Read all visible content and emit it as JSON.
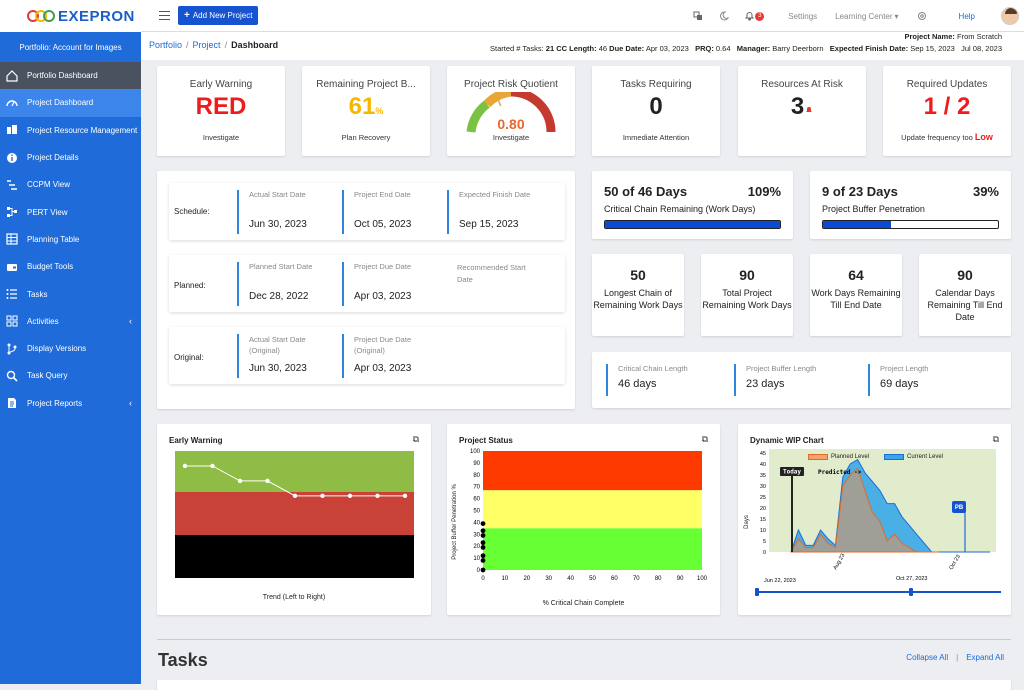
{
  "brand": {
    "name": "EXEPRON"
  },
  "sidebar": {
    "portfolio_title": "Portfolio: Account for Images",
    "items": [
      {
        "label": "Portfolio Dashboard",
        "icon": "home-icon"
      },
      {
        "label": "Project Dashboard",
        "icon": "dashboard-icon"
      },
      {
        "label": "Project Resource Management",
        "icon": "resource-icon"
      },
      {
        "label": "Project Details",
        "icon": "info-icon"
      },
      {
        "label": "CCPM View",
        "icon": "ccpm-icon"
      },
      {
        "label": "PERT View",
        "icon": "pert-icon"
      },
      {
        "label": "Planning Table",
        "icon": "table-icon"
      },
      {
        "label": "Budget Tools",
        "icon": "budget-icon"
      },
      {
        "label": "Tasks",
        "icon": "tasks-icon"
      },
      {
        "label": "Activities",
        "icon": "activities-icon",
        "chevron": "‹"
      },
      {
        "label": "Display Versions",
        "icon": "versions-icon"
      },
      {
        "label": "Task Query",
        "icon": "search-icon"
      },
      {
        "label": "Project Reports",
        "icon": "reports-icon",
        "chevron": "‹"
      }
    ]
  },
  "topbar": {
    "add_button": "Add New Project",
    "add_symbol": "+",
    "notif_count": "3",
    "settings": "Settings",
    "learning": "Learning Center",
    "learning_chev": "▾",
    "help": "Help"
  },
  "breadcrumb": {
    "portfolio": "Portfolio",
    "project": "Project",
    "current": "Dashboard",
    "sep": "/"
  },
  "project": {
    "name_label": "Project Name:",
    "name_value": "From Scratch",
    "started_label": "Started # Tasks:",
    "tasks": "21",
    "cc_label": "CC Length:",
    "cc": "46",
    "due_label": "Due Date:",
    "due": "Apr 03, 2023",
    "prq_label": "PRQ:",
    "prq": "0.64",
    "manager_label": "Manager:",
    "manager": "Barry Deerborn",
    "finish_label": "Expected Finish Date:",
    "finish": "Sep 15, 2023",
    "date": "Jul 08, 2023"
  },
  "kpis": [
    {
      "title": "Early Warning",
      "value": "RED",
      "sub": "Investigate",
      "color": "#ee1c1c"
    },
    {
      "title": "Remaining Project B...",
      "value": "61",
      "unit": "%",
      "sub": "Plan Recovery",
      "color": "#f5b800"
    },
    {
      "title": "Project Risk Quotient",
      "value": "0.80",
      "sub": "Investigate",
      "color": "#e8672e",
      "gauge": 0.8
    },
    {
      "title": "Tasks Requiring",
      "value": "0",
      "sub": "Immediate Attention",
      "color": "#111"
    },
    {
      "title": "Resources At Risk",
      "value": "3",
      "sub": "",
      "color": "#111"
    },
    {
      "title": "Required Updates",
      "value": "1 / 2",
      "sub": "Update frequency too",
      "sub2": "Low",
      "color": "#ee1c1c"
    }
  ],
  "dates": [
    {
      "label": "Schedule:",
      "cols": [
        {
          "h": "Actual Start Date",
          "v": "Jun 30, 2023"
        },
        {
          "h": "Project End Date",
          "v": "Oct 05, 2023"
        },
        {
          "h": "Expected Finish Date",
          "v": "Sep 15, 2023"
        }
      ]
    },
    {
      "label": "Planned:",
      "cols": [
        {
          "h": "Planned Start Date",
          "v": "Dec 28, 2022"
        },
        {
          "h": "Project Due Date",
          "v": "Apr 03, 2023"
        },
        {
          "h": "Recommended Start Date",
          "v": ""
        }
      ]
    },
    {
      "label": "Original:",
      "cols": [
        {
          "h": "Actual Start Date (Original)",
          "v": "Jun 30, 2023"
        },
        {
          "h": "Project Due Date (Original)",
          "v": "Apr 03, 2023"
        }
      ]
    }
  ],
  "chain": {
    "left": "50 of 46 Days",
    "right": "109%",
    "sub": "Critical Chain Remaining (Work Days)",
    "fill": 1.0
  },
  "buffer": {
    "left": "9 of 23 Days",
    "right": "39%",
    "sub": "Project Buffer Penetration",
    "fill": 0.39
  },
  "stats": [
    {
      "v": "50",
      "l": "Longest Chain of Remaining Work Days"
    },
    {
      "v": "90",
      "l": "Total Project Remaining Work Days"
    },
    {
      "v": "64",
      "l": "Work Days Remaining Till End Date"
    },
    {
      "v": "90",
      "l": "Calendar Days Remaining Till End Date"
    }
  ],
  "lengths": [
    {
      "h": "Critical Chain Length",
      "v": "46 days"
    },
    {
      "h": "Project Buffer Length",
      "v": "23 days"
    },
    {
      "h": "Project Length",
      "v": "69 days"
    }
  ],
  "charts": {
    "early_warning": {
      "title": "Early Warning",
      "xlabel": "Trend (Left to Right)"
    },
    "project_status": {
      "title": "Project Status",
      "xlabel": "% Critical Chain Complete",
      "ylabel": "Project Buffer Penetration %"
    },
    "wip": {
      "title": "Dynamic WIP Chart",
      "legend_planned": "Planned Level",
      "legend_current": "Current Level",
      "today": "Today",
      "predicted": "Predicted ->",
      "pb": "PB",
      "ylabel": "Days"
    }
  },
  "chart_data": [
    {
      "type": "line",
      "title": "Early Warning",
      "xlabel": "Trend (Left to Right)",
      "x": [
        1,
        2,
        3,
        4,
        5,
        6,
        7,
        8,
        9
      ],
      "values": [
        3,
        3,
        2.6,
        2.6,
        2.2,
        2.2,
        2.2,
        2.2,
        2.2
      ],
      "ylim": [
        0,
        3.4
      ]
    },
    {
      "type": "scatter",
      "title": "Project Status",
      "xlabel": "% Critical Chain Complete",
      "ylabel": "Project Buffer Penetration %",
      "xlim": [
        0,
        100
      ],
      "ylim": [
        0,
        100
      ],
      "xticks": [
        0,
        10,
        20,
        30,
        40,
        50,
        60,
        70,
        80,
        90,
        100
      ],
      "yticks": [
        0,
        10,
        20,
        30,
        40,
        50,
        60,
        70,
        80,
        90,
        100
      ],
      "points": [
        [
          0,
          0
        ],
        [
          0,
          8
        ],
        [
          0,
          12
        ],
        [
          0,
          19
        ],
        [
          0,
          23
        ],
        [
          0,
          29
        ],
        [
          0,
          33
        ],
        [
          0,
          39
        ]
      ]
    },
    {
      "type": "area",
      "title": "Dynamic WIP Chart",
      "ylabel": "Days",
      "ylim": [
        0,
        45
      ],
      "yticks": [
        0,
        5,
        10,
        15,
        20,
        25,
        30,
        35,
        40,
        45
      ],
      "xtick_labels": [
        "Jun 22, 2023",
        "Aug 23",
        "Oct 27, 2023",
        "Oct 23"
      ],
      "series": [
        {
          "name": "Planned Level",
          "values": [
            0,
            6,
            2,
            2,
            8,
            4,
            2,
            30,
            35,
            38,
            28,
            18,
            14,
            5,
            8,
            4,
            2,
            0,
            0,
            0,
            0
          ]
        },
        {
          "name": "Current Level",
          "values": [
            0,
            10,
            3,
            3,
            10,
            6,
            3,
            34,
            40,
            42,
            36,
            32,
            28,
            22,
            22,
            16,
            12,
            8,
            4,
            0,
            0
          ]
        }
      ]
    }
  ],
  "tasks": {
    "title": "Tasks",
    "collapse": "Collapse All",
    "expand": "Expand All",
    "sep": "|"
  }
}
